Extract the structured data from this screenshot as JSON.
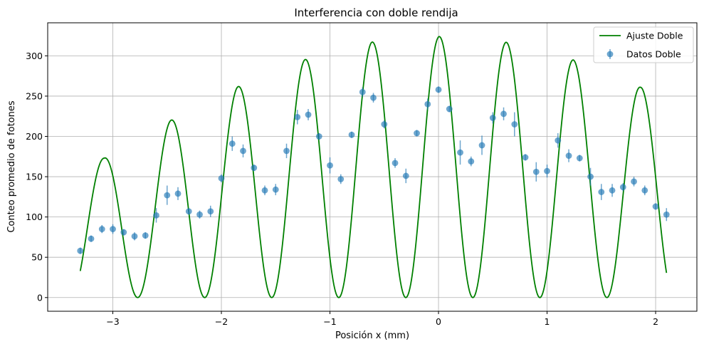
{
  "chart_data": {
    "type": "scatter",
    "title": "Interferencia con doble rendija",
    "xlabel": "Posición x (mm)",
    "ylabel": "Conteo promedio de fotones",
    "xlim": [
      -3.6,
      2.38
    ],
    "ylim": [
      -17,
      341
    ],
    "xticks": [
      -3,
      -2,
      -1,
      0,
      1,
      2
    ],
    "yticks": [
      0,
      50,
      100,
      150,
      200,
      250,
      300
    ],
    "xtick_labels": [
      "−3",
      "−2",
      "−1",
      "0",
      "1",
      "2"
    ],
    "ytick_labels": [
      "0",
      "50",
      "100",
      "150",
      "200",
      "250",
      "300"
    ],
    "grid": true,
    "legend_position": "top-right",
    "colors": {
      "fit": "#008000",
      "data": "#1f77b4"
    },
    "series": [
      {
        "name": "Ajuste Doble",
        "kind": "line",
        "x_range": [
          -3.3,
          2.1
        ],
        "peak_x": [
          -3.08,
          -2.48,
          -1.86,
          -1.24,
          -0.62,
          0.0,
          0.62,
          1.24,
          1.86
        ],
        "peak_y": [
          173,
          219,
          261,
          295,
          317,
          324,
          317,
          295,
          261
        ],
        "minima_y": 0
      },
      {
        "name": "Datos Doble",
        "kind": "errorbar",
        "points": [
          {
            "x": -3.3,
            "y": 58,
            "err": 4
          },
          {
            "x": -3.2,
            "y": 73,
            "err": 4
          },
          {
            "x": -3.1,
            "y": 85,
            "err": 5
          },
          {
            "x": -3.0,
            "y": 85,
            "err": 6
          },
          {
            "x": -2.9,
            "y": 81,
            "err": 4
          },
          {
            "x": -2.8,
            "y": 76,
            "err": 5
          },
          {
            "x": -2.7,
            "y": 77,
            "err": 4
          },
          {
            "x": -2.6,
            "y": 102,
            "err": 9
          },
          {
            "x": -2.5,
            "y": 127,
            "err": 12
          },
          {
            "x": -2.4,
            "y": 129,
            "err": 8
          },
          {
            "x": -2.3,
            "y": 107,
            "err": 4
          },
          {
            "x": -2.2,
            "y": 103,
            "err": 5
          },
          {
            "x": -2.1,
            "y": 107,
            "err": 7
          },
          {
            "x": -2.0,
            "y": 148,
            "err": 5
          },
          {
            "x": -1.9,
            "y": 191,
            "err": 9
          },
          {
            "x": -1.8,
            "y": 182,
            "err": 8
          },
          {
            "x": -1.7,
            "y": 161,
            "err": 4
          },
          {
            "x": -1.6,
            "y": 133,
            "err": 6
          },
          {
            "x": -1.5,
            "y": 134,
            "err": 7
          },
          {
            "x": -1.4,
            "y": 182,
            "err": 9
          },
          {
            "x": -1.3,
            "y": 224,
            "err": 9
          },
          {
            "x": -1.2,
            "y": 227,
            "err": 7
          },
          {
            "x": -1.1,
            "y": 200,
            "err": 4
          },
          {
            "x": -1.0,
            "y": 164,
            "err": 10
          },
          {
            "x": -0.9,
            "y": 147,
            "err": 6
          },
          {
            "x": -0.8,
            "y": 202,
            "err": 4
          },
          {
            "x": -0.7,
            "y": 255,
            "err": 6
          },
          {
            "x": -0.6,
            "y": 248,
            "err": 6
          },
          {
            "x": -0.5,
            "y": 215,
            "err": 5
          },
          {
            "x": -0.4,
            "y": 167,
            "err": 6
          },
          {
            "x": -0.3,
            "y": 151,
            "err": 9
          },
          {
            "x": -0.2,
            "y": 204,
            "err": 4
          },
          {
            "x": -0.1,
            "y": 240,
            "err": 7
          },
          {
            "x": 0.0,
            "y": 258,
            "err": 4
          },
          {
            "x": 0.1,
            "y": 234,
            "err": 4
          },
          {
            "x": 0.2,
            "y": 180,
            "err": 15
          },
          {
            "x": 0.3,
            "y": 169,
            "err": 6
          },
          {
            "x": 0.4,
            "y": 189,
            "err": 12
          },
          {
            "x": 0.5,
            "y": 223,
            "err": 7
          },
          {
            "x": 0.6,
            "y": 228,
            "err": 8
          },
          {
            "x": 0.7,
            "y": 215,
            "err": 15
          },
          {
            "x": 0.8,
            "y": 174,
            "err": 4
          },
          {
            "x": 0.9,
            "y": 156,
            "err": 12
          },
          {
            "x": 1.0,
            "y": 157,
            "err": 8
          },
          {
            "x": 1.1,
            "y": 195,
            "err": 9
          },
          {
            "x": 1.2,
            "y": 176,
            "err": 8
          },
          {
            "x": 1.3,
            "y": 173,
            "err": 4
          },
          {
            "x": 1.4,
            "y": 150,
            "err": 11
          },
          {
            "x": 1.5,
            "y": 131,
            "err": 10
          },
          {
            "x": 1.6,
            "y": 133,
            "err": 8
          },
          {
            "x": 1.7,
            "y": 137,
            "err": 5
          },
          {
            "x": 1.8,
            "y": 144,
            "err": 6
          },
          {
            "x": 1.9,
            "y": 133,
            "err": 6
          },
          {
            "x": 2.0,
            "y": 113,
            "err": 4
          },
          {
            "x": 2.1,
            "y": 103,
            "err": 8
          }
        ]
      }
    ]
  }
}
